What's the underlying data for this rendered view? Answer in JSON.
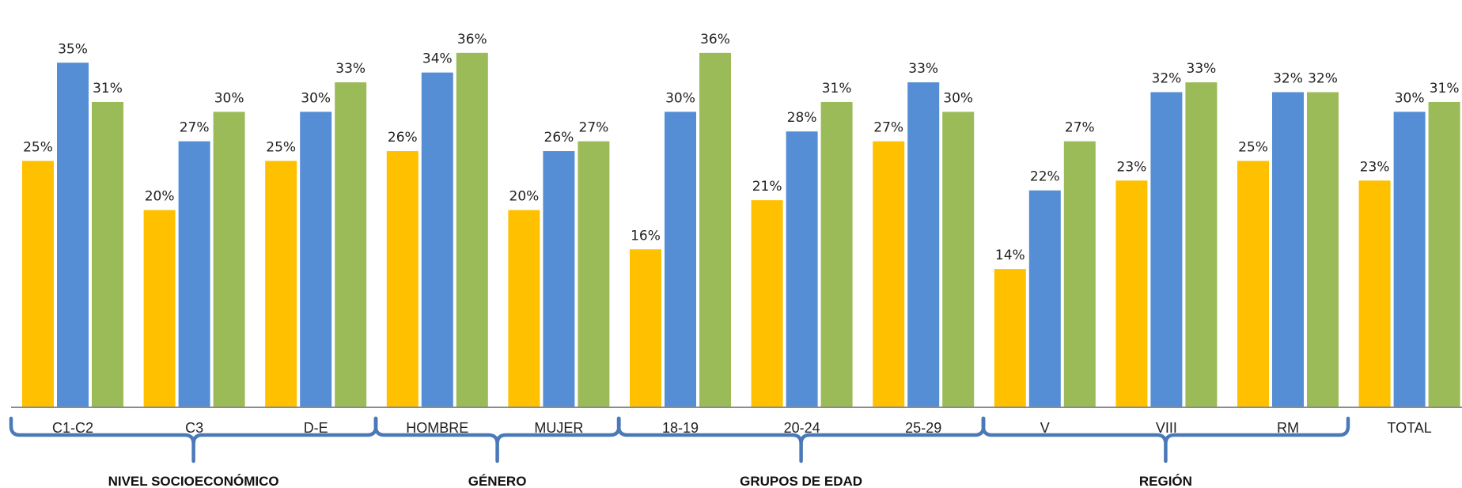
{
  "chart_data": {
    "type": "bar",
    "categories": [
      "C1-C2",
      "C3",
      "D-E",
      "HOMBRE",
      "MUJER",
      "18-19",
      "20-24",
      "25-29",
      "V",
      "VIII",
      "RM",
      "TOTAL"
    ],
    "series": [
      {
        "color": "#FFC000",
        "values": [
          25,
          20,
          25,
          26,
          20,
          16,
          21,
          27,
          14,
          23,
          25,
          23
        ]
      },
      {
        "color": "#558ED5",
        "values": [
          35,
          27,
          30,
          34,
          26,
          30,
          28,
          33,
          22,
          32,
          32,
          30
        ]
      },
      {
        "color": "#9BBB59",
        "values": [
          31,
          30,
          33,
          36,
          27,
          36,
          31,
          30,
          27,
          33,
          32,
          31
        ]
      }
    ],
    "value_suffix": "%",
    "ylim": [
      0,
      38
    ],
    "groups": [
      {
        "label": "NIVEL SOCIOECONÓMICO",
        "first": 0,
        "last": 2
      },
      {
        "label": "GÉNERO",
        "first": 3,
        "last": 4
      },
      {
        "label": "GRUPOS DE EDAD",
        "first": 5,
        "last": 7
      },
      {
        "label": "REGIÓN",
        "first": 8,
        "last": 10
      }
    ],
    "grid": false,
    "legend": "none",
    "brace_color": "#4A79B8"
  }
}
